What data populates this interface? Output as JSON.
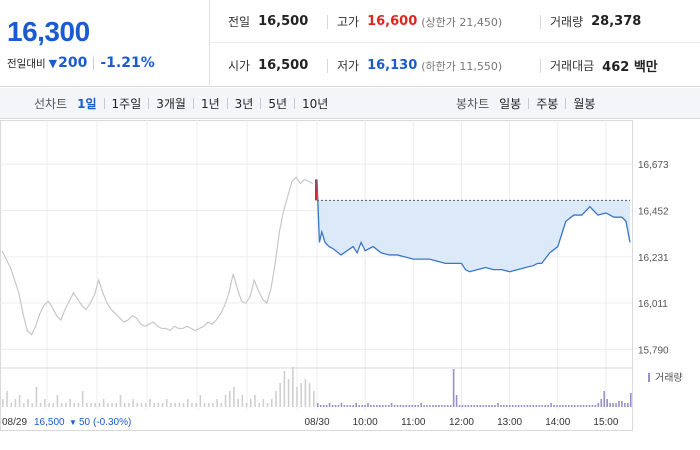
{
  "colors": {
    "up": "#e0271f",
    "down": "#1a5bd1",
    "today_line": "#3a76c8",
    "today_fill": "#dce9f8",
    "prev_line": "#c7c7c7",
    "volume_today": "#9a8fcb",
    "volume_prev": "#cfcfcf",
    "grid": "#ececec"
  },
  "quote": {
    "price": "16,300",
    "diff_label": "전일대비",
    "diff_icon": "down-triangle-icon",
    "diff_amount": "200",
    "diff_percent": "-1.21%"
  },
  "stats": {
    "prev_close_label": "전일",
    "prev_close": "16,500",
    "high_label": "고가",
    "high": "16,600",
    "upper_limit": "(상한가 21,450)",
    "volume_label": "거래량",
    "volume": "28,378",
    "open_label": "시가",
    "open": "16,500",
    "low_label": "저가",
    "low": "16,130",
    "lower_limit": "(하한가 11,550)",
    "value_label": "거래대금",
    "value": "462 백만"
  },
  "tabs": {
    "line_label": "선차트",
    "line_items": [
      "1일",
      "1주일",
      "3개월",
      "1년",
      "3년",
      "5년",
      "10년"
    ],
    "line_active": 0,
    "candle_label": "봉차트",
    "candle_items": [
      "일봉",
      "주봉",
      "월봉"
    ]
  },
  "chart_data": {
    "type": "line",
    "ylim": [
      15730,
      16740
    ],
    "y_ticks": [
      16673,
      16452,
      16231,
      16011,
      15790
    ],
    "y_tick_labels": [
      "16,673",
      "16,452",
      "16,231",
      "16,011",
      "15,790"
    ],
    "reference_price": 16500,
    "x_ticks": [
      "08/30",
      "10:00",
      "11:00",
      "12:00",
      "13:00",
      "14:00",
      "15:00"
    ],
    "x_tick_minutes": [
      0,
      60,
      120,
      180,
      240,
      300,
      360
    ],
    "x_session_minutes": 390,
    "open_spike": [
      16500,
      16600
    ],
    "volume_legend": "거래량",
    "previous_day": {
      "date": "08/29",
      "close": "16,500",
      "change_icon": "down-triangle-icon",
      "change": "50",
      "change_pct": "(-0.30%)",
      "values": [
        16260,
        16220,
        16180,
        16120,
        16060,
        15960,
        15880,
        15860,
        15900,
        15960,
        16000,
        16020,
        15990,
        15950,
        15930,
        15980,
        16020,
        16060,
        16030,
        16000,
        15980,
        16010,
        16050,
        16120,
        16060,
        16010,
        15980,
        15960,
        15940,
        15920,
        15930,
        15950,
        15940,
        15910,
        15900,
        15910,
        15920,
        15900,
        15890,
        15890,
        15880,
        15900,
        15890,
        15890,
        15900,
        15890,
        15880,
        15890,
        15900,
        15920,
        15910,
        15930,
        15960,
        16000,
        16060,
        16150,
        16080,
        16020,
        16010,
        16040,
        16120,
        16070,
        16030,
        16010,
        16080,
        16200,
        16350,
        16450,
        16520,
        16590,
        16610,
        16580,
        16600,
        16590,
        16580
      ]
    },
    "today": {
      "minutes": [
        0,
        3,
        6,
        10,
        15,
        20,
        30,
        45,
        50,
        55,
        60,
        70,
        80,
        90,
        100,
        110,
        120,
        140,
        150,
        160,
        170,
        180,
        185,
        190,
        200,
        210,
        220,
        230,
        240,
        250,
        260,
        270,
        275,
        280,
        290,
        300,
        310,
        320,
        330,
        340,
        345,
        350,
        360,
        370,
        380,
        385,
        390
      ],
      "values": [
        16600,
        16300,
        16350,
        16300,
        16280,
        16270,
        16240,
        16280,
        16250,
        16300,
        16260,
        16280,
        16250,
        16240,
        16240,
        16230,
        16220,
        16220,
        16210,
        16200,
        16200,
        16200,
        16170,
        16160,
        16170,
        16180,
        16170,
        16170,
        16160,
        16170,
        16180,
        16190,
        16200,
        16200,
        16250,
        16280,
        16400,
        16430,
        16430,
        16470,
        16450,
        16430,
        16440,
        16420,
        16420,
        16400,
        16300
      ]
    },
    "volume": {
      "prev": [
        0.2,
        0.4,
        0.1,
        0.2,
        0.3,
        0.1,
        0.2,
        0.1,
        0.5,
        0.1,
        0.2,
        0.1,
        0.1,
        0.3,
        0.1,
        0.1,
        0.2,
        0.1,
        0.1,
        0.4,
        0.1,
        0.1,
        0.1,
        0.1,
        0.2,
        0.1,
        0.1,
        0.1,
        0.3,
        0.1,
        0.1,
        0.2,
        0.1,
        0.1,
        0.1,
        0.2,
        0.1,
        0.1,
        0.1,
        0.2,
        0.1,
        0.1,
        0.1,
        0.1,
        0.2,
        0.1,
        0.1,
        0.3,
        0.1,
        0.1,
        0.1,
        0.2,
        0.1,
        0.3,
        0.4,
        0.5,
        0.2,
        0.3,
        0.1,
        0.2,
        0.3,
        0.1,
        0.2,
        0.1,
        0.2,
        0.4,
        0.6,
        0.9,
        0.7,
        1.0,
        0.5,
        0.6,
        0.7,
        0.6,
        0.4
      ],
      "today": [
        0.1,
        0.05,
        0.05,
        0.05,
        0.1,
        0.05,
        0.05,
        0.05,
        0.1,
        0.05,
        0.05,
        0.05,
        0.05,
        0.1,
        0.05,
        0.05,
        0.05,
        0.1,
        0.05,
        0.05,
        0.05,
        0.05,
        0.05,
        0.05,
        0.05,
        0.1,
        0.05,
        0.05,
        0.05,
        0.05,
        0.05,
        0.05,
        0.05,
        0.05,
        0.05,
        0.1,
        0.05,
        0.05,
        0.05,
        0.05,
        0.05,
        0.05,
        0.05,
        0.05,
        0.05,
        0.05,
        0.95,
        0.3,
        0.05,
        0.05,
        0.05,
        0.05,
        0.05,
        0.05,
        0.05,
        0.05,
        0.05,
        0.05,
        0.05,
        0.05,
        0.05,
        0.1,
        0.05,
        0.05,
        0.05,
        0.05,
        0.05,
        0.05,
        0.05,
        0.05,
        0.05,
        0.05,
        0.05,
        0.05,
        0.05,
        0.05,
        0.05,
        0.05,
        0.05,
        0.1,
        0.05,
        0.05,
        0.05,
        0.05,
        0.05,
        0.05,
        0.05,
        0.05,
        0.05,
        0.05,
        0.05,
        0.05,
        0.05,
        0.05,
        0.05,
        0.1,
        0.2,
        0.4,
        0.2,
        0.1,
        0.1,
        0.1,
        0.15,
        0.15,
        0.1,
        0.1,
        0.35
      ]
    }
  }
}
